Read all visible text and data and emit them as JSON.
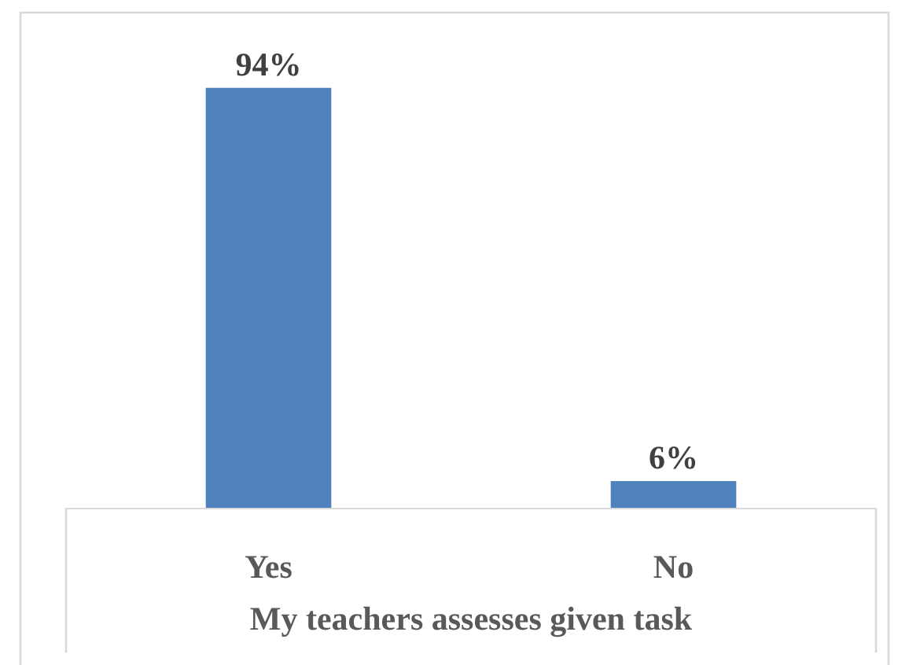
{
  "chart_data": {
    "type": "bar",
    "categories": [
      "Yes",
      "No"
    ],
    "values": [
      94,
      6
    ],
    "value_labels": [
      "94%",
      "6%"
    ],
    "color": "#4f81bd",
    "xlabel": "My teachers assesses given task",
    "tick_labels": "x"
  }
}
